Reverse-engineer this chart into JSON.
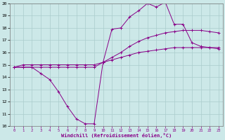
{
  "xlabel": "Windchill (Refroidissement éolien,°C)",
  "bg_color": "#cce8e8",
  "line_color": "#880088",
  "grid_color": "#aacccc",
  "xlim": [
    -0.5,
    23.5
  ],
  "ylim": [
    10,
    20
  ],
  "xticks": [
    0,
    1,
    2,
    3,
    4,
    5,
    6,
    7,
    8,
    9,
    10,
    11,
    12,
    13,
    14,
    15,
    16,
    17,
    18,
    19,
    20,
    21,
    22,
    23
  ],
  "yticks": [
    10,
    11,
    12,
    13,
    14,
    15,
    16,
    17,
    18,
    19,
    20
  ],
  "line1_x": [
    0,
    1,
    2,
    3,
    4,
    5,
    6,
    7,
    8,
    9,
    10,
    11,
    12,
    13,
    14,
    15,
    16,
    17,
    18,
    19,
    20,
    21,
    22,
    23
  ],
  "line1_y": [
    14.8,
    15.0,
    15.0,
    15.0,
    15.0,
    15.0,
    15.0,
    15.0,
    15.0,
    15.0,
    15.2,
    15.4,
    15.6,
    15.8,
    16.0,
    16.1,
    16.2,
    16.3,
    16.4,
    16.4,
    16.4,
    16.4,
    16.4,
    16.3
  ],
  "line2_x": [
    0,
    1,
    2,
    3,
    4,
    5,
    6,
    7,
    8,
    9,
    10,
    11,
    12,
    13,
    14,
    15,
    16,
    17,
    18,
    19,
    20,
    21,
    22,
    23
  ],
  "line2_y": [
    14.8,
    14.8,
    14.8,
    14.8,
    14.8,
    14.8,
    14.8,
    14.8,
    14.8,
    14.8,
    15.2,
    15.6,
    16.0,
    16.5,
    16.9,
    17.2,
    17.4,
    17.6,
    17.7,
    17.8,
    17.8,
    17.8,
    17.7,
    17.6
  ],
  "line3_x": [
    0,
    1,
    2,
    3,
    4,
    5,
    6,
    7,
    8,
    9,
    10,
    11,
    12,
    13,
    14,
    15,
    16,
    17,
    18,
    19,
    20,
    21,
    22,
    23
  ],
  "line3_y": [
    14.8,
    14.8,
    14.8,
    14.3,
    13.8,
    12.8,
    11.6,
    10.6,
    10.2,
    10.2,
    15.2,
    17.9,
    18.0,
    18.9,
    19.4,
    20.0,
    19.7,
    20.1,
    18.3,
    18.3,
    16.8,
    16.5,
    16.4,
    16.4
  ]
}
